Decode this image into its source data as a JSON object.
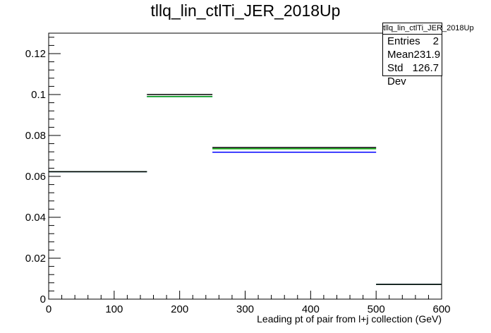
{
  "chart_data": {
    "type": "histogram",
    "title": "tllq_lin_ctlTi_JER_2018Up",
    "xlabel": "Leading pt of pair from l+j collection (GeV)",
    "ylabel": "",
    "xlim": [
      0,
      600
    ],
    "ylim": [
      0,
      0.13
    ],
    "x_ticks": [
      0,
      100,
      200,
      300,
      400,
      500,
      600
    ],
    "y_ticks": [
      0,
      0.02,
      0.04,
      0.06,
      0.08,
      0.1,
      0.12
    ],
    "x_tick_labels": [
      "0",
      "100",
      "200",
      "300",
      "400",
      "500",
      "600"
    ],
    "y_tick_labels": [
      "0",
      "0.02",
      "0.04",
      "0.06",
      "0.08",
      "0.1",
      "0.12"
    ],
    "bin_edges": [
      0,
      150,
      250,
      500,
      600
    ],
    "series": [
      {
        "color": "#000000",
        "values": [
          0.0623,
          0.1,
          0.0741,
          0.0072
        ]
      },
      {
        "color": "#00aa00",
        "values": [
          0.0623,
          0.099,
          0.0735,
          0.0072
        ]
      },
      {
        "color": "#0000ff",
        "values": [
          0.0623,
          0.099,
          0.0718,
          0.0072
        ]
      }
    ],
    "stats": {
      "name": "tllq_lin_ctlTi_JER_2018Up",
      "entries_label": "Entries",
      "entries": "2",
      "mean_label": "Mean",
      "mean": "231.9",
      "std_label": "Std Dev",
      "std": "126.7"
    },
    "grid": false,
    "legend": "none"
  }
}
